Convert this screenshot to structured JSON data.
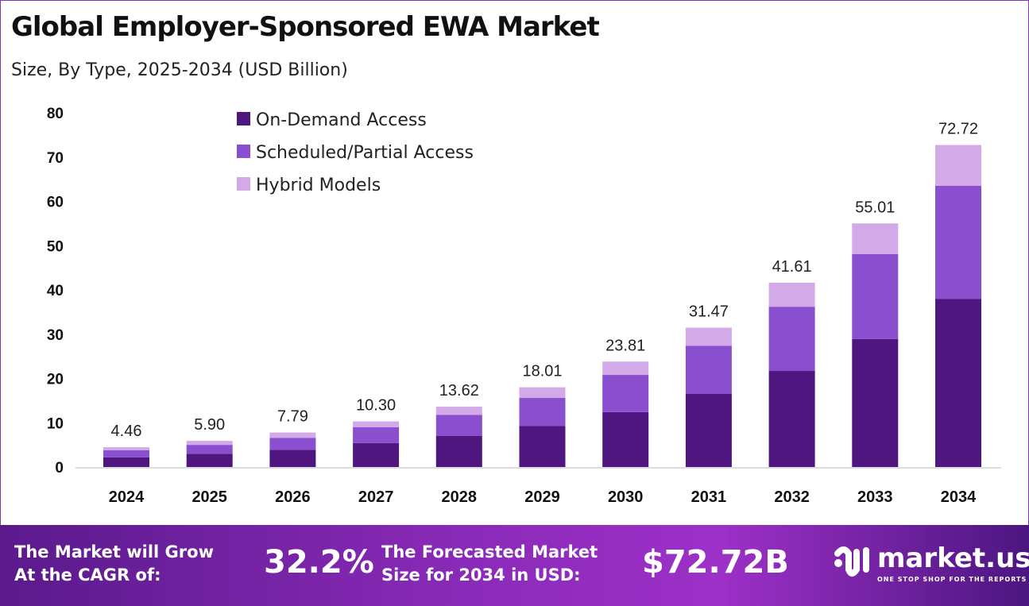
{
  "title": "Global Employer-Sponsored EWA Market",
  "subtitle": "Size, By Type, 2025-2034 (USD Billion)",
  "chart_data": {
    "type": "bar",
    "stacked": true,
    "categories": [
      "2024",
      "2025",
      "2026",
      "2027",
      "2028",
      "2029",
      "2030",
      "2031",
      "2032",
      "2033",
      "2034"
    ],
    "series": [
      {
        "name": "On-Demand Access",
        "color": "#4f1680",
        "values": [
          2.2,
          3.0,
          3.9,
          5.4,
          7.0,
          9.3,
          12.4,
          16.5,
          21.7,
          28.9,
          38.0
        ]
      },
      {
        "name": "Scheduled/Partial Access",
        "color": "#8a4fcf",
        "values": [
          1.6,
          2.0,
          2.7,
          3.6,
          4.8,
          6.3,
          8.4,
          10.9,
          14.5,
          19.2,
          25.5
        ]
      },
      {
        "name": "Hybrid Models",
        "color": "#d3a9e8",
        "values": [
          0.66,
          0.9,
          1.19,
          1.3,
          1.82,
          2.41,
          3.01,
          4.07,
          5.41,
          6.91,
          9.22
        ]
      }
    ],
    "totals": [
      "4.46",
      "5.90",
      "7.79",
      "10.30",
      "13.62",
      "18.01",
      "23.81",
      "31.47",
      "41.61",
      "55.01",
      "72.72"
    ],
    "yticks": [
      0,
      10,
      20,
      30,
      40,
      50,
      60,
      70,
      80
    ],
    "ylim": [
      0,
      80
    ],
    "grid": false,
    "legend": "top-left"
  },
  "footer": {
    "cagr_label_1": "The Market will Grow",
    "cagr_label_2": "At the CAGR of:",
    "cagr_value": "32.2%",
    "forecast_label_1": "The Forecasted Market",
    "forecast_label_2": "Size for 2034 in USD:",
    "forecast_value": "$72.72B",
    "logo_name": "market.us",
    "logo_tagline": "ONE STOP SHOP FOR THE REPORTS"
  }
}
